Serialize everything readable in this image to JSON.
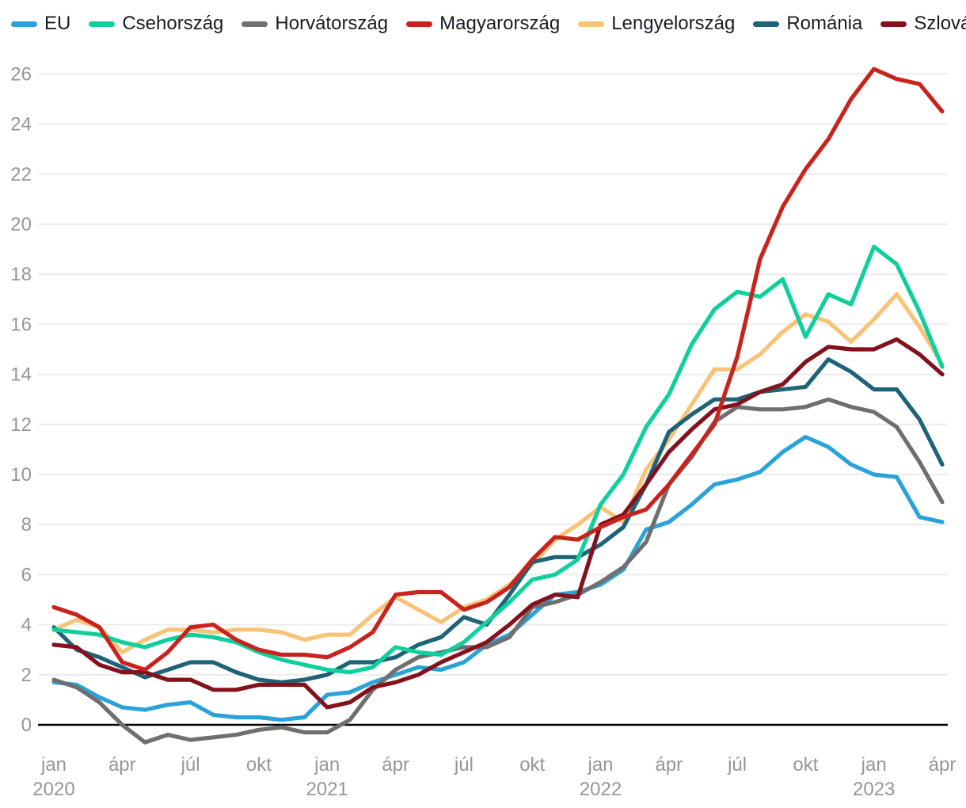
{
  "legend": {
    "items": [
      {
        "label": "EU",
        "color": "#2ba3d9"
      },
      {
        "label": "Csehország",
        "color": "#0fd09c"
      },
      {
        "label": "Horvátország",
        "color": "#6f6f6f"
      },
      {
        "label": "Magyarország",
        "color": "#c9231e"
      },
      {
        "label": "Lengyelország",
        "color": "#f8c377"
      },
      {
        "label": "Románia",
        "color": "#1f6379"
      },
      {
        "label": "Szlovákia",
        "color": "#84121d"
      }
    ]
  },
  "chart_data": {
    "type": "line",
    "title": "",
    "xlabel": "",
    "ylabel": "",
    "x_monthly_from": "2020-01",
    "x_monthly_to": "2023-04",
    "months": [
      "2020-01",
      "2020-02",
      "2020-03",
      "2020-04",
      "2020-05",
      "2020-06",
      "2020-07",
      "2020-08",
      "2020-09",
      "2020-10",
      "2020-11",
      "2020-12",
      "2021-01",
      "2021-02",
      "2021-03",
      "2021-04",
      "2021-05",
      "2021-06",
      "2021-07",
      "2021-08",
      "2021-09",
      "2021-10",
      "2021-11",
      "2021-12",
      "2022-01",
      "2022-02",
      "2022-03",
      "2022-04",
      "2022-05",
      "2022-06",
      "2022-07",
      "2022-08",
      "2022-09",
      "2022-10",
      "2022-11",
      "2022-12",
      "2023-01",
      "2023-02",
      "2023-03",
      "2023-04"
    ],
    "x_ticks": [
      {
        "label": "jan",
        "year": "2020"
      },
      {
        "label": "ápr"
      },
      {
        "label": "júl"
      },
      {
        "label": "okt"
      },
      {
        "label": "jan",
        "year": "2021"
      },
      {
        "label": "ápr"
      },
      {
        "label": "júl"
      },
      {
        "label": "okt"
      },
      {
        "label": "jan",
        "year": "2022"
      },
      {
        "label": "ápr"
      },
      {
        "label": "júl"
      },
      {
        "label": "okt"
      },
      {
        "label": "jan",
        "year": "2023"
      },
      {
        "label": "ápr"
      }
    ],
    "y_ticks": [
      0,
      2,
      4,
      6,
      8,
      10,
      12,
      14,
      16,
      18,
      20,
      22,
      24,
      26
    ],
    "ylim": [
      -1.2,
      27
    ],
    "grid": "horizontal",
    "legend_position": "top",
    "series": [
      {
        "name": "EU",
        "color": "#2ba3d9",
        "values": [
          1.7,
          1.6,
          1.1,
          0.7,
          0.6,
          0.8,
          0.9,
          0.4,
          0.3,
          0.3,
          0.2,
          0.3,
          1.2,
          1.3,
          1.7,
          2.0,
          2.3,
          2.2,
          2.5,
          3.2,
          3.6,
          4.4,
          5.2,
          5.3,
          5.6,
          6.2,
          7.8,
          8.1,
          8.8,
          9.6,
          9.8,
          10.1,
          10.9,
          11.5,
          11.1,
          10.4,
          10.0,
          9.9,
          8.3,
          8.1
        ]
      },
      {
        "name": "Csehország",
        "color": "#0fd09c",
        "values": [
          3.8,
          3.7,
          3.6,
          3.3,
          3.1,
          3.4,
          3.6,
          3.5,
          3.3,
          2.9,
          2.6,
          2.4,
          2.2,
          2.1,
          2.3,
          3.1,
          2.9,
          2.8,
          3.3,
          4.1,
          4.9,
          5.8,
          6.0,
          6.6,
          8.8,
          10.0,
          11.9,
          13.2,
          15.2,
          16.6,
          17.3,
          17.1,
          17.8,
          15.5,
          17.2,
          16.8,
          19.1,
          18.4,
          16.5,
          14.3
        ]
      },
      {
        "name": "Horvátország",
        "color": "#6f6f6f",
        "values": [
          1.8,
          1.5,
          0.9,
          0.0,
          -0.7,
          -0.4,
          -0.6,
          -0.5,
          -0.4,
          -0.2,
          -0.1,
          -0.3,
          -0.3,
          0.2,
          1.4,
          2.2,
          2.7,
          2.9,
          3.1,
          3.1,
          3.5,
          4.7,
          4.9,
          5.2,
          5.7,
          6.3,
          7.3,
          9.6,
          10.7,
          12.1,
          12.7,
          12.6,
          12.6,
          12.7,
          13.0,
          12.7,
          12.5,
          11.9,
          10.5,
          8.9
        ]
      },
      {
        "name": "Magyarország",
        "color": "#c9231e",
        "values": [
          4.7,
          4.4,
          3.9,
          2.5,
          2.2,
          2.9,
          3.9,
          4.0,
          3.4,
          3.0,
          2.8,
          2.8,
          2.7,
          3.1,
          3.7,
          5.2,
          5.3,
          5.3,
          4.6,
          4.9,
          5.5,
          6.6,
          7.5,
          7.4,
          7.9,
          8.3,
          8.6,
          9.6,
          10.8,
          12.0,
          14.7,
          18.6,
          20.7,
          22.2,
          23.4,
          25.0,
          26.2,
          25.8,
          25.6,
          24.5
        ]
      },
      {
        "name": "Lengyelország",
        "color": "#f8c377",
        "values": [
          3.8,
          4.2,
          3.9,
          2.9,
          3.4,
          3.8,
          3.8,
          3.7,
          3.8,
          3.8,
          3.7,
          3.4,
          3.6,
          3.6,
          4.4,
          5.1,
          4.6,
          4.1,
          4.7,
          5.0,
          5.6,
          6.4,
          7.4,
          8.0,
          8.7,
          8.1,
          10.2,
          11.4,
          12.8,
          14.2,
          14.2,
          14.8,
          15.7,
          16.4,
          16.1,
          15.3,
          16.2,
          17.2,
          15.9,
          14.4
        ]
      },
      {
        "name": "Románia",
        "color": "#1f6379",
        "values": [
          3.9,
          3.0,
          2.7,
          2.3,
          1.9,
          2.2,
          2.5,
          2.5,
          2.1,
          1.8,
          1.7,
          1.8,
          2.0,
          2.5,
          2.5,
          2.7,
          3.2,
          3.5,
          4.3,
          4.0,
          5.2,
          6.5,
          6.7,
          6.7,
          7.2,
          7.9,
          9.6,
          11.7,
          12.4,
          13.0,
          13.0,
          13.3,
          13.4,
          13.5,
          14.6,
          14.1,
          13.4,
          13.4,
          12.2,
          10.4
        ]
      },
      {
        "name": "Szlovákia",
        "color": "#84121d",
        "values": [
          3.2,
          3.1,
          2.4,
          2.1,
          2.1,
          1.8,
          1.8,
          1.4,
          1.4,
          1.6,
          1.6,
          1.6,
          0.7,
          0.9,
          1.5,
          1.7,
          2.0,
          2.5,
          2.9,
          3.3,
          4.0,
          4.8,
          5.2,
          5.1,
          8.0,
          8.4,
          9.6,
          10.9,
          11.8,
          12.6,
          12.8,
          13.3,
          13.6,
          14.5,
          15.1,
          15.0,
          15.0,
          15.4,
          14.8,
          14.0
        ]
      }
    ]
  },
  "colors": {
    "background": "#ffffff",
    "gridline": "#ececec",
    "zero_line": "#000000",
    "axis_text": "#969696",
    "legend_text": "#1a1b24"
  }
}
